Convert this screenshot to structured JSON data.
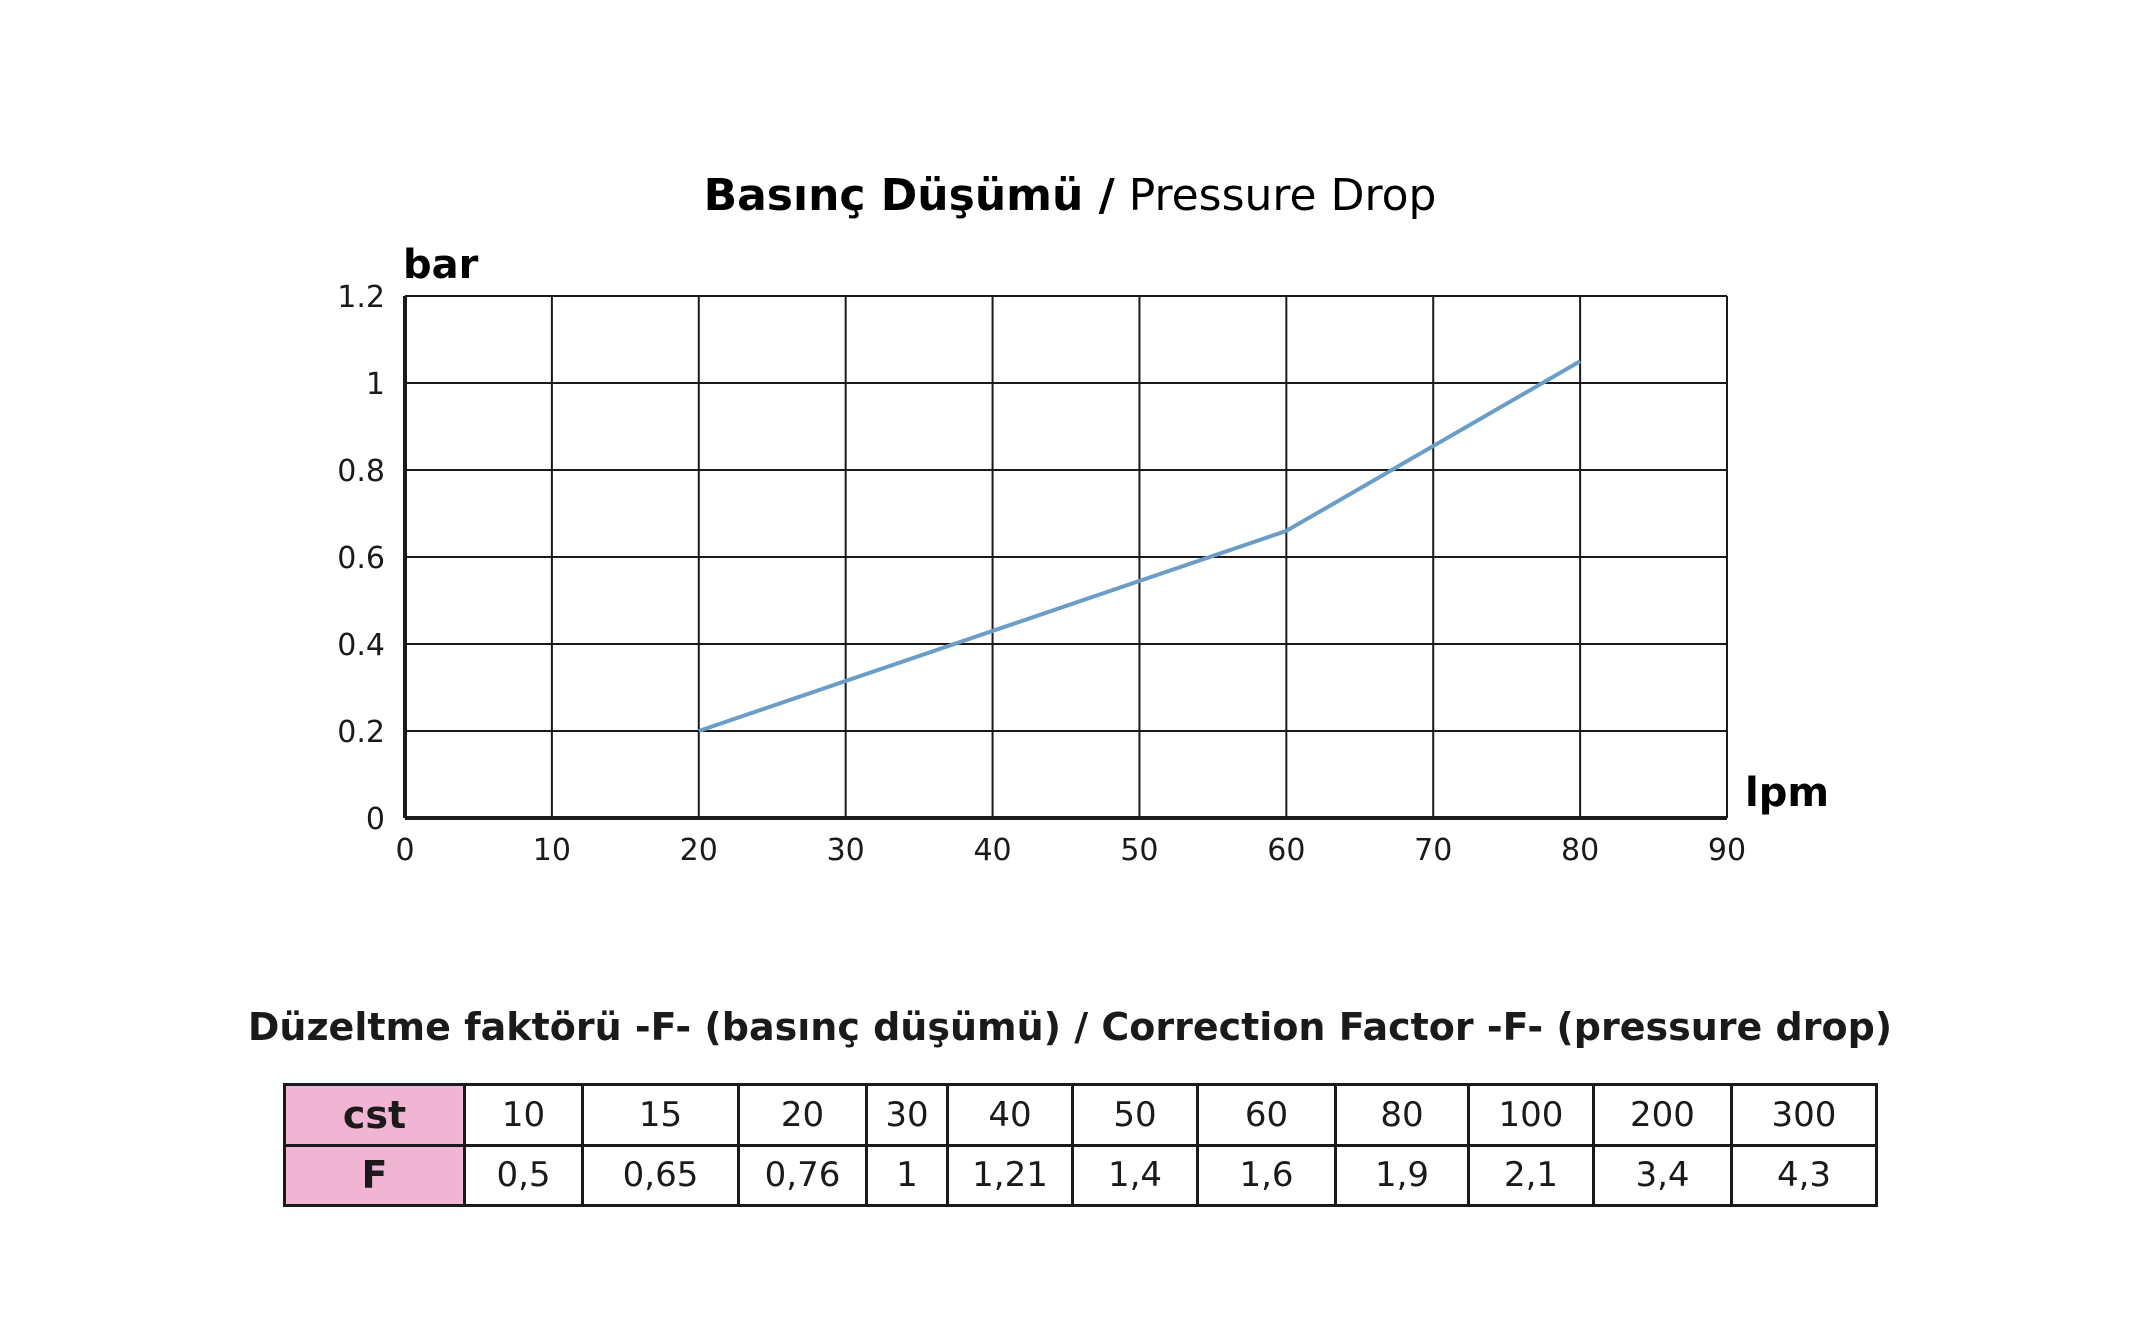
{
  "chart_data": {
    "type": "line",
    "title_bold": "Basınç Düşümü /",
    "title_normal": " Pressure Drop",
    "xlabel": "lpm",
    "ylabel": "bar",
    "xlim": [
      0,
      90
    ],
    "ylim": [
      0,
      1.2
    ],
    "x_ticks": [
      0,
      10,
      20,
      30,
      40,
      50,
      60,
      70,
      80,
      90
    ],
    "y_ticks": [
      "0",
      "0.2",
      "0.4",
      "0.6",
      "0.8",
      "1",
      "1.2"
    ],
    "y_tick_values": [
      0,
      0.2,
      0.4,
      0.6,
      0.8,
      1,
      1.2
    ],
    "grid": true,
    "series": [
      {
        "x": [
          20,
          40,
          60,
          80
        ],
        "y": [
          0.2,
          0.43,
          0.66,
          1.05
        ],
        "color": "#6a9ec8"
      }
    ]
  },
  "table": {
    "title": "Düzeltme faktörü -F- (basınç düşümü) /  Correction Factor -F- (pressure drop)",
    "row1_label": "cst",
    "row2_label": "F",
    "cst": [
      "10",
      "15",
      "20",
      "30",
      "40",
      "50",
      "60",
      "80",
      "100",
      "200",
      "300"
    ],
    "f": [
      "0,5",
      "0,65",
      "0,76",
      "1",
      "1,21",
      "1,4",
      "1,6",
      "1,9",
      "2,1",
      "3,4",
      "4,3"
    ],
    "header_color": "#f0b5d2"
  }
}
